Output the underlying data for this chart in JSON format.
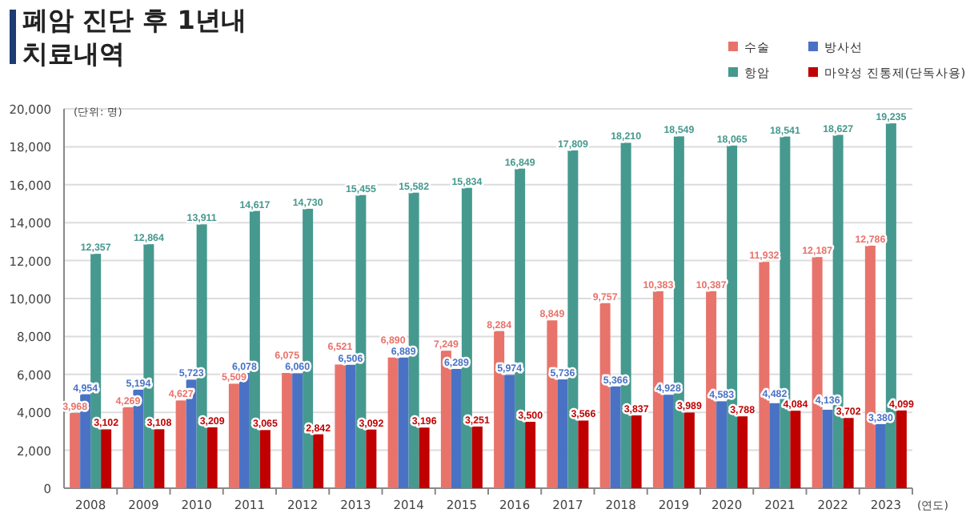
{
  "chart_data": {
    "type": "bar",
    "title": "폐암 진단 후 1년내 치료내역",
    "categories": [
      "2008",
      "2009",
      "2010",
      "2011",
      "2012",
      "2013",
      "2014",
      "2015",
      "2016",
      "2017",
      "2018",
      "2019",
      "2020",
      "2021",
      "2022",
      "2023"
    ],
    "series": [
      {
        "name": "수술",
        "color": "#e8736b",
        "values": [
          3968,
          4269,
          4627,
          5509,
          6075,
          6521,
          6890,
          7249,
          8284,
          8849,
          9757,
          10383,
          10387,
          11932,
          12187,
          12786
        ],
        "value_labels": [
          "3,968",
          "4,269",
          "4,627",
          "5,509",
          "6,075",
          "6,521",
          "6,890",
          "7,249",
          "8,284",
          "8,849",
          "9,757",
          "10,383",
          "10,387",
          "11,932",
          "12,187",
          "12,786"
        ]
      },
      {
        "name": "방사선",
        "color": "#4a72c4",
        "values": [
          4954,
          5194,
          5723,
          6078,
          6060,
          6506,
          6889,
          6289,
          5974,
          5736,
          5366,
          4928,
          4583,
          4482,
          4136,
          3380
        ],
        "value_labels": [
          "4,954",
          "5,194",
          "5,723",
          "6,078",
          "6,060",
          "6,506",
          "6,889",
          "6,289",
          "5,974",
          "5,736",
          "5,366",
          "4,928",
          "4,583",
          "4,482",
          "4,136",
          "3,380"
        ]
      },
      {
        "name": "항암",
        "color": "#46998f",
        "values": [
          12357,
          12864,
          13911,
          14617,
          14730,
          15455,
          15582,
          15834,
          16849,
          17809,
          18210,
          18549,
          18065,
          18541,
          18627,
          19235
        ],
        "value_labels": [
          "12,357",
          "12,864",
          "13,911",
          "14,617",
          "14,730",
          "15,455",
          "15,582",
          "15,834",
          "16,849",
          "17,809",
          "18,210",
          "18,549",
          "18,065",
          "18,541",
          "18,627",
          "19,235"
        ]
      },
      {
        "name": "마약성 진통제(단독사용)",
        "color": "#c00000",
        "values": [
          3102,
          3108,
          3209,
          3065,
          2842,
          3092,
          3196,
          3251,
          3500,
          3566,
          3837,
          3989,
          3788,
          4084,
          3702,
          4099
        ],
        "value_labels": [
          "3,102",
          "3,108",
          "3,209",
          "3,065",
          "2,842",
          "3,092",
          "3,196",
          "3,251",
          "3,500",
          "3,566",
          "3,837",
          "3,989",
          "3,788",
          "4,084",
          "3,702",
          "4,099"
        ]
      }
    ],
    "ylim": [
      0,
      20000
    ],
    "yticks": [
      {
        "value": 0,
        "label": "0"
      },
      {
        "value": 2000,
        "label": "2,000"
      },
      {
        "value": 4000,
        "label": "4,000"
      },
      {
        "value": 6000,
        "label": "6,000"
      },
      {
        "value": 8000,
        "label": "8,000"
      },
      {
        "value": 10000,
        "label": "10,000"
      },
      {
        "value": 12000,
        "label": "12,000"
      },
      {
        "value": 14000,
        "label": "14,000"
      },
      {
        "value": 16000,
        "label": "16,000"
      },
      {
        "value": 18000,
        "label": "18,000"
      },
      {
        "value": 20000,
        "label": "20,000"
      }
    ],
    "grid": "y",
    "legend": "top right",
    "annotations": [
      "(단위: 명)",
      "(연도)"
    ]
  }
}
